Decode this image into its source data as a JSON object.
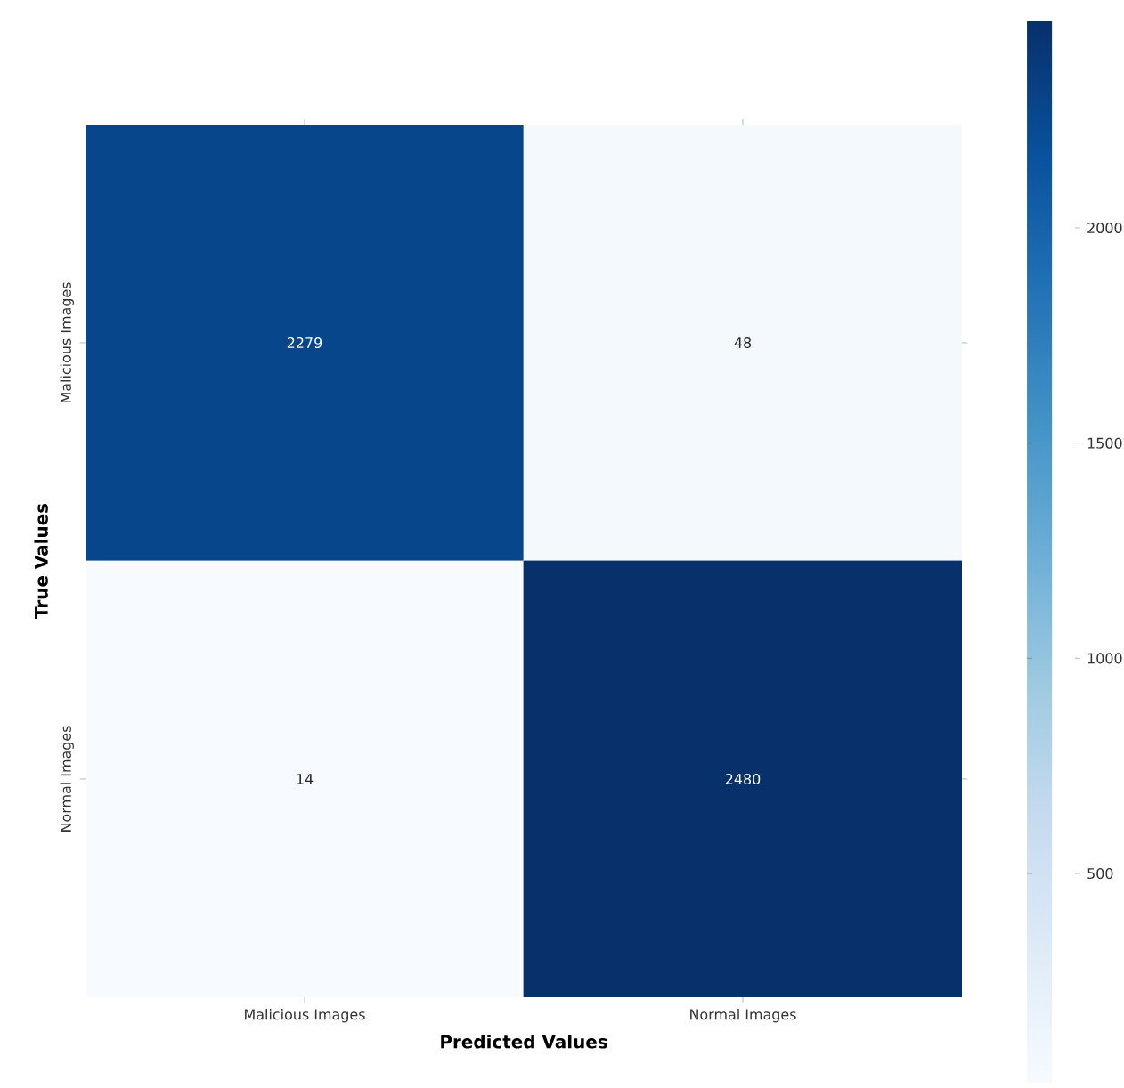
{
  "chart_data": {
    "type": "heatmap",
    "xlabel": "Predicted Values",
    "ylabel": "True Values",
    "categories": [
      "Malicious Images",
      "Normal Images"
    ],
    "y_categories": [
      "Malicious Images",
      "Normal Images"
    ],
    "cells": [
      [
        2279,
        48
      ],
      [
        14,
        2480
      ]
    ],
    "data_labels": true,
    "clim": [
      14,
      2480
    ],
    "cticks": [
      500,
      1000,
      1500,
      2000
    ]
  }
}
